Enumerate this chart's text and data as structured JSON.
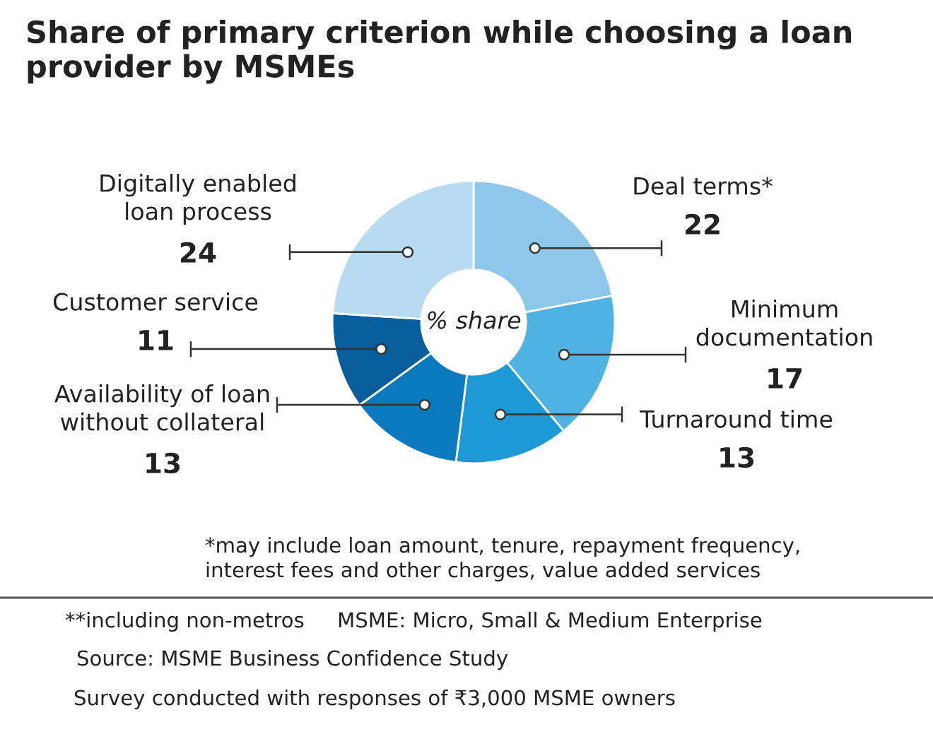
{
  "chart_data": {
    "type": "donut",
    "title": "Share of primary criterion while choosing a loan provider by MSMEs",
    "categories": [
      "Deal terms*",
      "Minimum\ndocumentation",
      "Turnaround time",
      "Availability of loan\nwithout collateral",
      "Customer service",
      "Digitally enabled\nloan process"
    ],
    "values": [
      22,
      17,
      13,
      13,
      11,
      24
    ],
    "colors": [
      "#8ec7ea",
      "#4fb2e1",
      "#1d9ad6",
      "#0b79be",
      "#0a5d9b",
      "#b8dbf2"
    ],
    "data_labels": true,
    "legend": false,
    "annotations": [
      "% share",
      "*may include loan amount, tenure, repayment frequency,\ninterest fees and other charges, value added services",
      "**including non-metros     MSME: Micro, Small & Medium Enterprise",
      "Source: MSME Business Confidence Study",
      "Survey conducted with responses of ₹3,000 MSME owners"
    ]
  }
}
